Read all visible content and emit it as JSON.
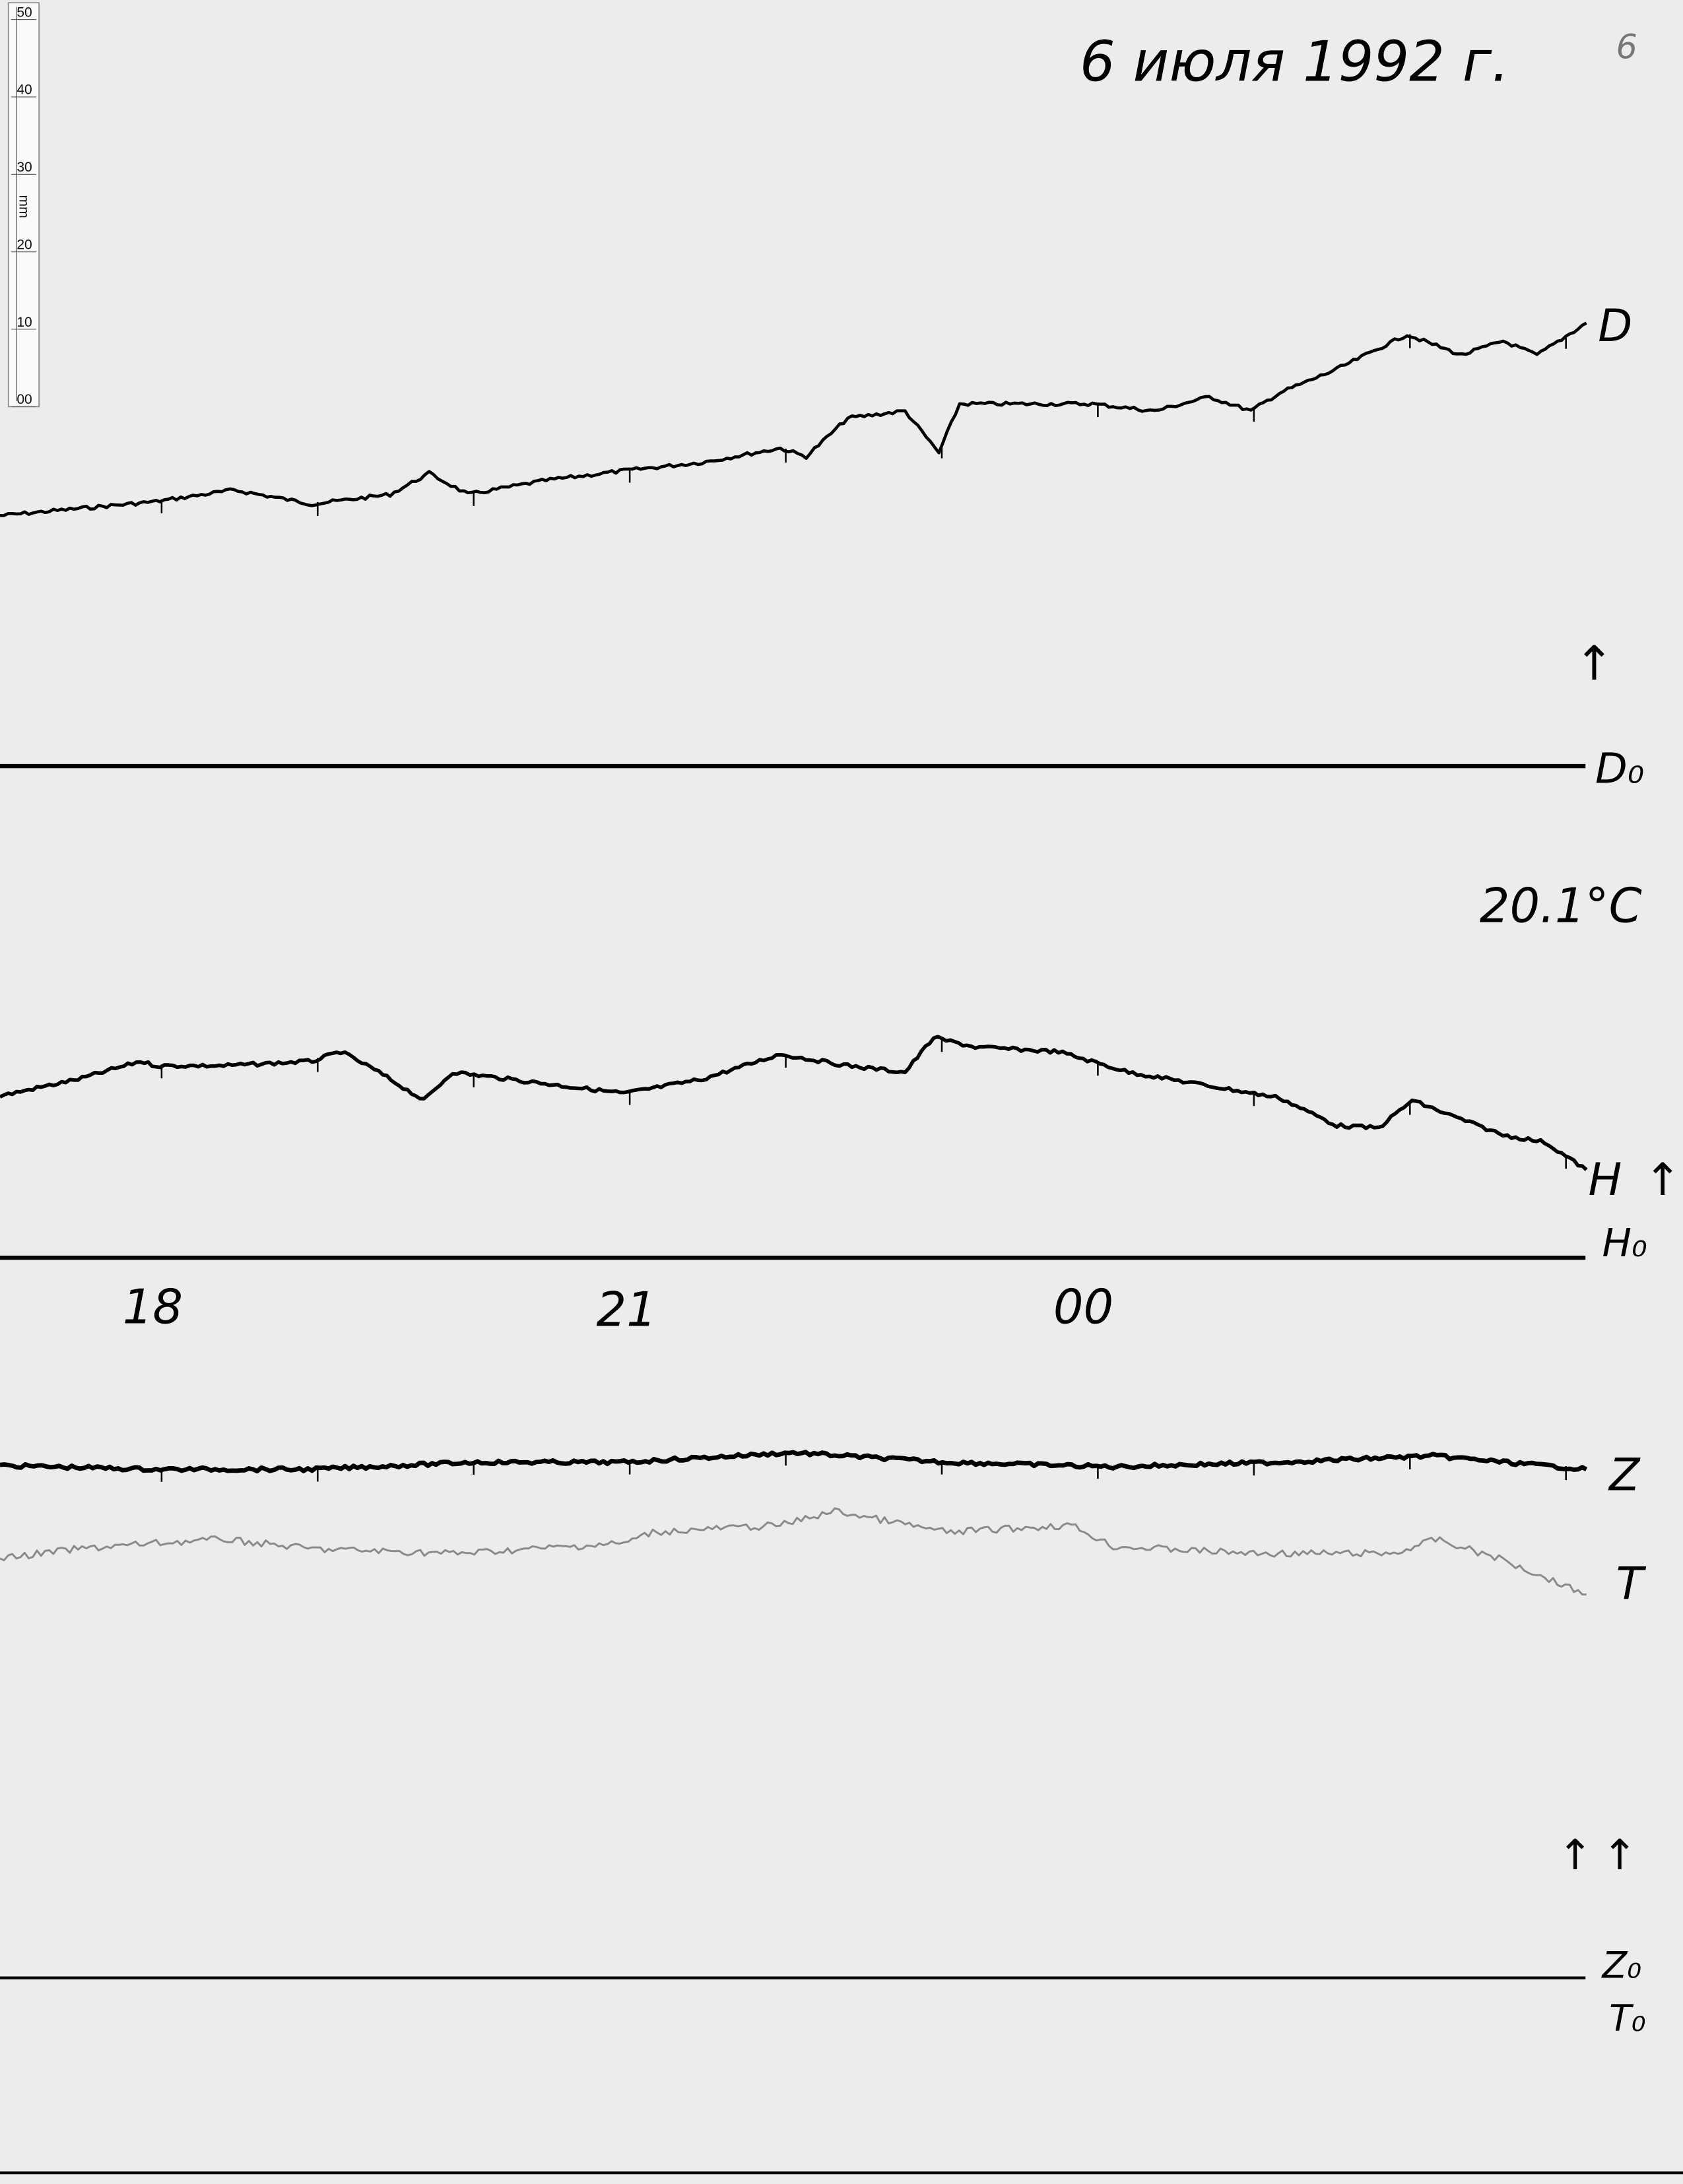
{
  "title": "6 июля 1992 г.",
  "page_number": "6",
  "temperature": "20.1°C",
  "ruler": {
    "unit": "mm",
    "ticks": [
      "50",
      "40",
      "30",
      "20",
      "10",
      "00"
    ]
  },
  "colors": {
    "paper": "#ececec",
    "ink": "#000000",
    "t_trace": "#8a8a8a"
  },
  "chart_data": {
    "type": "line",
    "title": "6 июля 1992 г.",
    "x_unit": "time (hours)",
    "y_unit": "mm",
    "x_ticks": [
      "18",
      "21",
      "00"
    ],
    "grid": false,
    "series": [
      {
        "name": "D",
        "baseline": "D₀",
        "arrow": "↑",
        "x": [
          "17:00",
          "17:30",
          "18:00",
          "18:30",
          "19:00",
          "19:30",
          "19:45",
          "20:00",
          "20:30",
          "21:00",
          "21:30",
          "22:00",
          "22:10",
          "22:26",
          "22:48",
          "23:01",
          "23:09",
          "23:30",
          "00:00",
          "00:24",
          "00:45",
          "01:01",
          "01:12",
          "01:34",
          "02:01",
          "02:22",
          "02:38",
          "02:51",
          "03:10"
        ],
        "y": [
          39.0,
          40.1,
          41.2,
          43.0,
          40.8,
          42.3,
          45.6,
          42.3,
          44.5,
          46.0,
          47.3,
          49.5,
          48.2,
          54.2,
          55.3,
          48.8,
          56.4,
          56.4,
          56.4,
          55.3,
          57.5,
          55.3,
          58.1,
          61.8,
          67.2,
          64.0,
          66.2,
          64.0,
          69.0
        ]
      },
      {
        "name": "H",
        "baseline": "H₀",
        "arrow": "↑",
        "x": [
          "17:00",
          "17:30",
          "17:54",
          "18:00",
          "18:26",
          "19:00",
          "19:11",
          "19:24",
          "19:43",
          "19:54",
          "20:04",
          "21:00",
          "21:30",
          "22:00",
          "22:26",
          "22:48",
          "22:59",
          "23:15",
          "23:47",
          "00:14",
          "00:46",
          "01:12",
          "01:34",
          "01:50",
          "02:03",
          "02:17",
          "02:38",
          "02:54",
          "03:10"
        ],
        "y": [
          25.2,
          27.8,
          30.6,
          29.9,
          29.9,
          30.6,
          32.1,
          29.3,
          24.5,
          28.9,
          28.4,
          25.6,
          27.8,
          31.7,
          29.9,
          28.9,
          34.3,
          32.8,
          32.1,
          28.9,
          26.7,
          24.9,
          20.6,
          20.2,
          24.5,
          22.3,
          19.1,
          18.0,
          13.7
        ]
      },
      {
        "name": "Z",
        "baseline": "Z₀",
        "arrow": "↑",
        "x": [
          "17:00",
          "18:00",
          "19:00",
          "20:02",
          "21:00",
          "22:05",
          "23:04",
          "00:08",
          "01:12",
          "02:11",
          "03:10"
        ],
        "y": [
          79.8,
          79.2,
          79.2,
          80.3,
          80.3,
          81.8,
          80.3,
          79.6,
          80.3,
          81.3,
          79.2
        ]
      },
      {
        "name": "T",
        "baseline": "T₀",
        "arrow": "↑",
        "x": [
          "17:00",
          "17:30",
          "18:00",
          "18:26",
          "19:00",
          "19:56",
          "21:00",
          "21:11",
          "22:00",
          "22:21",
          "23:04",
          "23:52",
          "00:08",
          "01:02",
          "01:56",
          "02:12",
          "02:38",
          "03:10"
        ],
        "y": [
          65.3,
          66.8,
          67.7,
          68.3,
          66.8,
          66.1,
          67.7,
          69.4,
          70.5,
          72.7,
          69.4,
          70.5,
          67.2,
          66.1,
          66.1,
          68.3,
          65.1,
          59.7
        ]
      }
    ]
  }
}
